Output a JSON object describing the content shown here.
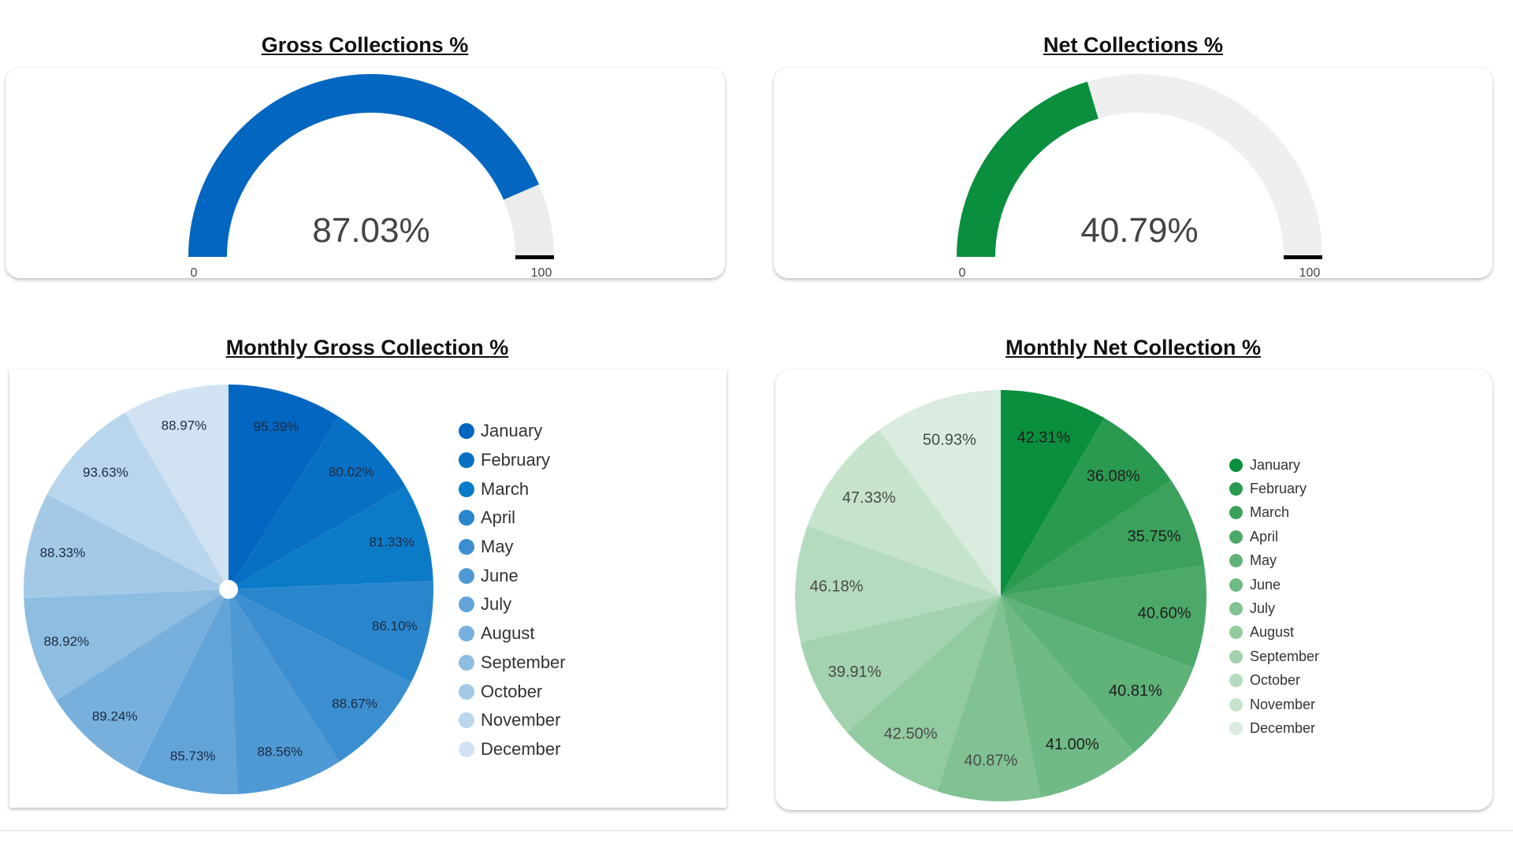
{
  "gauges": [
    {
      "title": "Gross Collections %",
      "value": 87.03,
      "display": "87.03%",
      "min_label": "0",
      "max_label": "100",
      "color": "#0366c0",
      "track_color": "#ececec"
    },
    {
      "title": "Net Collections %",
      "value": 40.79,
      "display": "40.79%",
      "min_label": "0",
      "max_label": "100",
      "color": "#0a8f3e",
      "track_color": "#efefef"
    }
  ],
  "chart_data": [
    {
      "type": "pie",
      "title": "Monthly Gross Collection %",
      "categories": [
        "January",
        "February",
        "March",
        "April",
        "May",
        "June",
        "July",
        "August",
        "September",
        "October",
        "November",
        "December"
      ],
      "values": [
        95.39,
        80.02,
        81.33,
        86.1,
        88.67,
        88.56,
        85.73,
        89.24,
        88.92,
        88.33,
        93.63,
        88.97
      ],
      "labels": [
        "95.39%",
        "80.02%",
        "81.33%",
        "86.10%",
        "88.67%",
        "88.56%",
        "85.73%",
        "89.24%",
        "88.92%",
        "88.33%",
        "93.63%",
        "88.97%"
      ],
      "colors": [
        "#0366c0",
        "#0870c4",
        "#0b7bc8",
        "#2a86cc",
        "#3b8fd0",
        "#4f99d4",
        "#62a4d8",
        "#78b0dd",
        "#8ebde2",
        "#a3c9e7",
        "#b9d6ed",
        "#d1e3f3"
      ],
      "legend": "right"
    },
    {
      "type": "pie",
      "title": "Monthly Net Collection %",
      "categories": [
        "January",
        "February",
        "March",
        "April",
        "May",
        "June",
        "July",
        "August",
        "September",
        "October",
        "November",
        "December"
      ],
      "values": [
        42.31,
        36.08,
        35.75,
        40.6,
        40.81,
        41.0,
        40.87,
        42.5,
        39.91,
        46.18,
        47.33,
        50.93
      ],
      "labels": [
        "42.31%",
        "36.08%",
        "35.75%",
        "40.60%",
        "40.81%",
        "41.00%",
        "40.87%",
        "42.50%",
        "39.91%",
        "46.18%",
        "47.33%",
        "50.93%"
      ],
      "colors": [
        "#0a8f3e",
        "#2a9a51",
        "#3ba15d",
        "#4da96a",
        "#5fb278",
        "#6fba85",
        "#80c292",
        "#92cba0",
        "#a3d3ae",
        "#b4dbbd",
        "#c6e4cc",
        "#d9ecdf"
      ],
      "legend": "right"
    }
  ]
}
